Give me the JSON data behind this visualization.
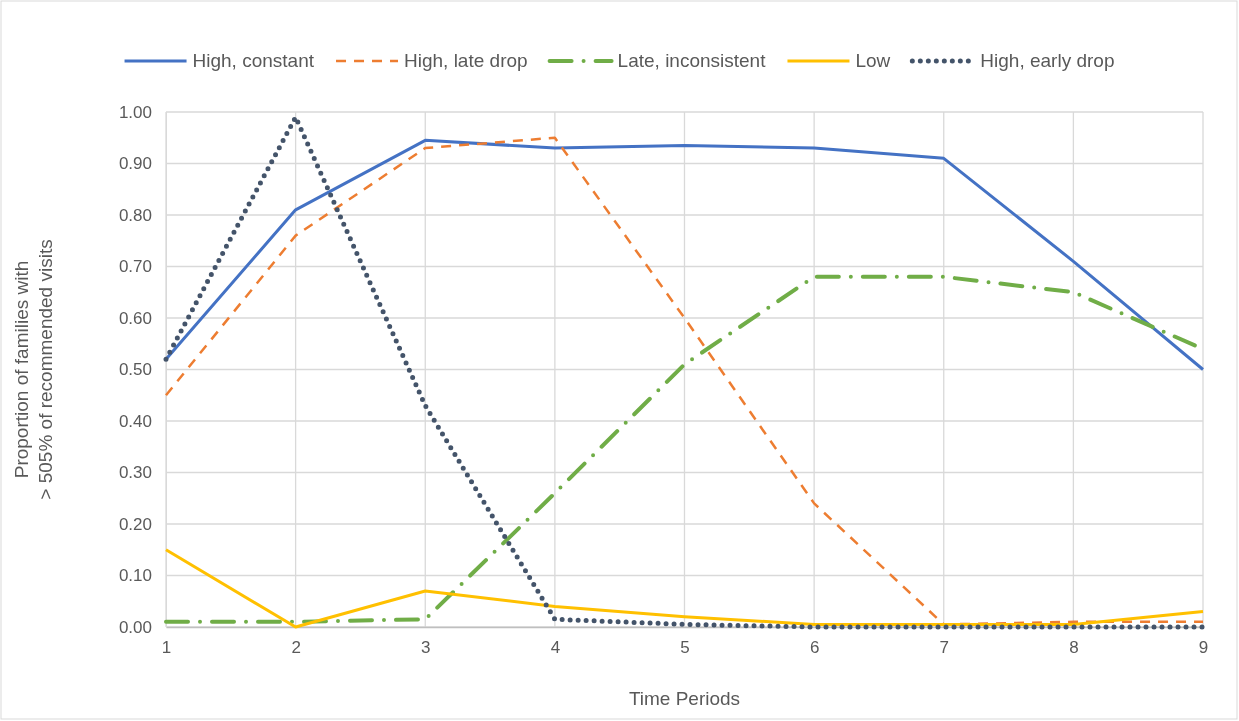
{
  "chart_data": {
    "type": "line",
    "xlabel": "Time Periods",
    "ylabel": "Proportion of families with\n> 505% of recommended visits",
    "x": [
      1,
      2,
      3,
      4,
      5,
      6,
      7,
      8,
      9
    ],
    "xlim": [
      1,
      9
    ],
    "xticks": [
      1,
      2,
      3,
      4,
      5,
      6,
      7,
      8,
      9
    ],
    "ylim": [
      0,
      1
    ],
    "yticks": [
      {
        "value": 0,
        "label": "0.00"
      },
      {
        "value": 0.1,
        "label": "0.10"
      },
      {
        "value": 0.2,
        "label": "0.20"
      },
      {
        "value": 0.3,
        "label": "0.30"
      },
      {
        "value": 0.4,
        "label": "0.40"
      },
      {
        "value": 0.5,
        "label": "0.50"
      },
      {
        "value": 0.6,
        "label": "0.60"
      },
      {
        "value": 0.7,
        "label": "0.70"
      },
      {
        "value": 0.8,
        "label": "0.80"
      },
      {
        "value": 0.9,
        "label": "0.90"
      },
      {
        "value": 1,
        "label": "1.00"
      }
    ],
    "grid": true,
    "legend": "top",
    "marker": "none",
    "series": [
      {
        "name": "High, constant",
        "color": "#4472c4",
        "line_style": "solid",
        "values": [
          0.52,
          0.81,
          0.945,
          0.93,
          0.935,
          0.93,
          0.91,
          0.71,
          0.5
        ]
      },
      {
        "name": "High, late drop",
        "color": "#ed7d31",
        "line_style": "dashed",
        "values": [
          0.45,
          0.76,
          0.93,
          0.95,
          0.6,
          0.24,
          0.005,
          0.01,
          0.01
        ]
      },
      {
        "name": "Late, inconsistent",
        "color": "#70ad47",
        "line_style": "dashdot",
        "values": [
          0.01,
          0.01,
          0.015,
          0.26,
          0.51,
          0.68,
          0.68,
          0.65,
          0.54
        ]
      },
      {
        "name": "Low",
        "color": "#ffc000",
        "line_style": "solid",
        "values": [
          0.15,
          0.0,
          0.07,
          0.04,
          0.02,
          0.005,
          0.005,
          0.005,
          0.03
        ]
      },
      {
        "name": "High, early drop",
        "color": "#44546a",
        "line_style": "dotted",
        "values": [
          0.52,
          0.99,
          0.43,
          0.015,
          0.005,
          0.0,
          0.0,
          0.0,
          0.0
        ]
      }
    ]
  }
}
